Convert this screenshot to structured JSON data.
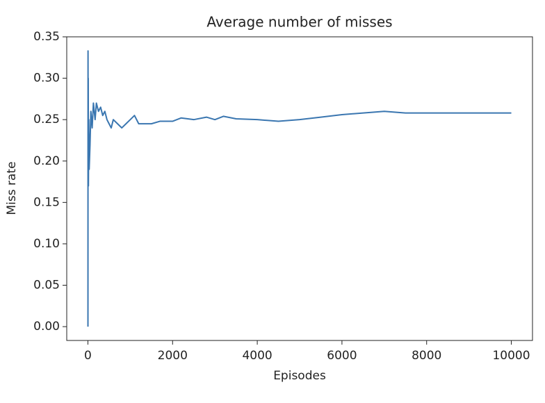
{
  "chart_data": {
    "type": "line",
    "title": "Average number of misses",
    "x_label": "Episodes",
    "y_label": "Miss rate",
    "x": [
      1,
      3,
      5,
      8,
      12,
      20,
      30,
      50,
      70,
      100,
      130,
      170,
      200,
      250,
      300,
      350,
      400,
      450,
      500,
      550,
      600,
      700,
      800,
      900,
      1000,
      1100,
      1200,
      1300,
      1500,
      1700,
      2000,
      2200,
      2500,
      2800,
      3000,
      3200,
      3500,
      4000,
      4500,
      5000,
      5500,
      6000,
      6500,
      7000,
      7500,
      8000,
      8500,
      9000,
      9500,
      10000
    ],
    "series": [
      {
        "color": "#3a76b0",
        "values": [
          0.0,
          0.333,
          0.2,
          0.3,
          0.17,
          0.25,
          0.19,
          0.22,
          0.26,
          0.24,
          0.27,
          0.25,
          0.27,
          0.26,
          0.265,
          0.255,
          0.26,
          0.25,
          0.245,
          0.24,
          0.25,
          0.245,
          0.24,
          0.245,
          0.25,
          0.255,
          0.245,
          0.245,
          0.245,
          0.248,
          0.248,
          0.252,
          0.25,
          0.253,
          0.25,
          0.254,
          0.251,
          0.25,
          0.248,
          0.25,
          0.253,
          0.256,
          0.258,
          0.26,
          0.258,
          0.258,
          0.258,
          0.258,
          0.258,
          0.258
        ]
      }
    ],
    "xlim": [
      -500,
      10500
    ],
    "xticks": [
      0,
      2000,
      4000,
      6000,
      8000,
      10000
    ],
    "ylim": [
      -0.0167,
      0.35
    ],
    "yticks": [
      {
        "value": 0,
        "label": "0.00"
      },
      0.05,
      {
        "value": 0.1,
        "label": "0.10"
      },
      0.15,
      {
        "value": 0.2,
        "label": "0.20"
      },
      0.25,
      {
        "value": 0.3,
        "label": "0.30"
      },
      0.35
    ]
  }
}
